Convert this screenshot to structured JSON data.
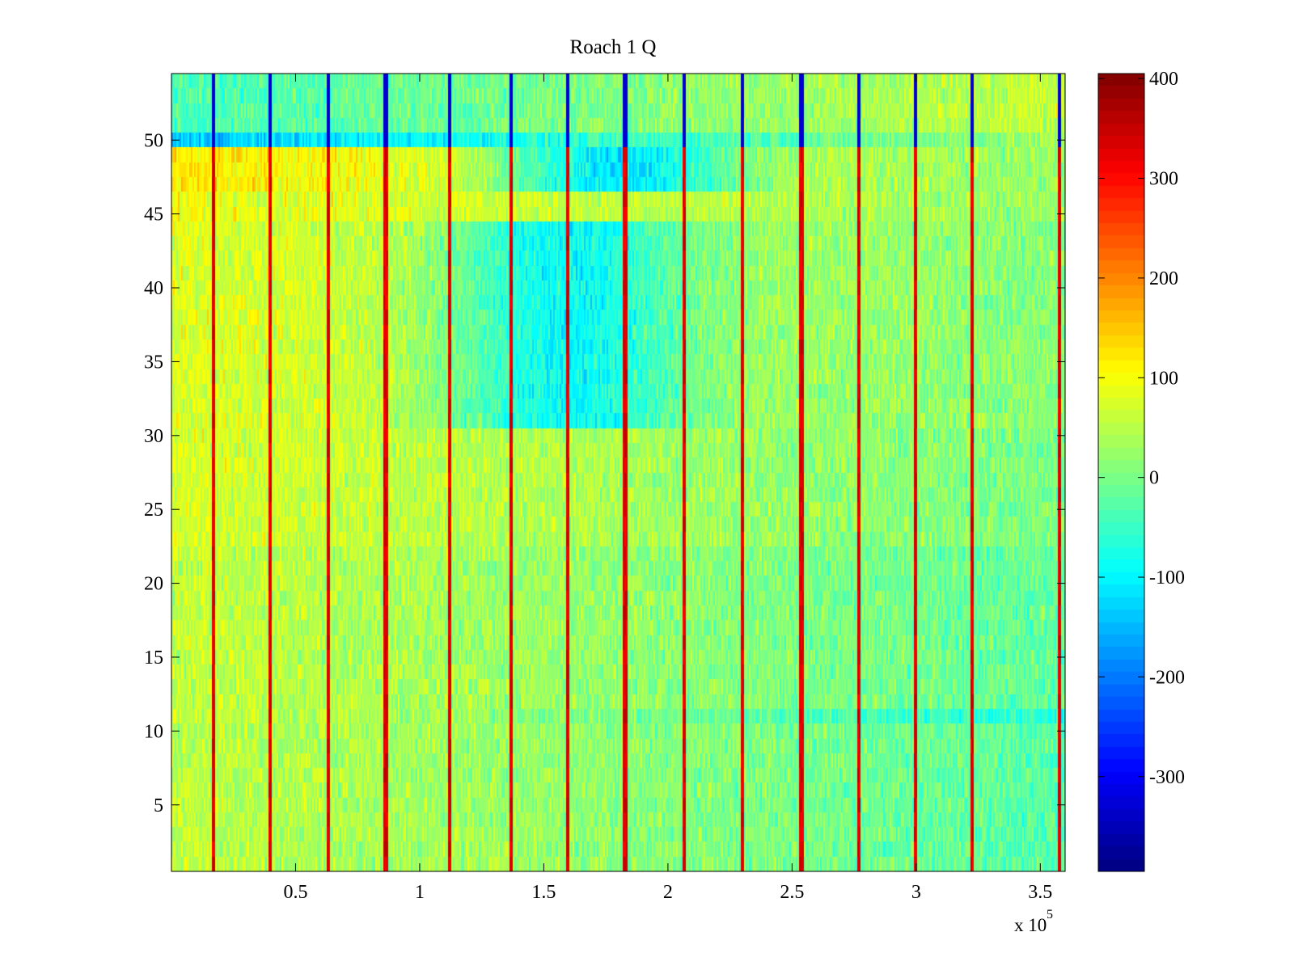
{
  "chart_data": {
    "type": "heatmap",
    "title": "Roach 1 Q",
    "xlabel": "",
    "ylabel": "",
    "x_exponent_label": "x 10",
    "x_exponent_power": "5",
    "xlim": [
      1,
      360000
    ],
    "ylim": [
      0.5,
      54.5
    ],
    "x_ticks": [
      0.5,
      1,
      1.5,
      2,
      2.5,
      3,
      3.5
    ],
    "x_tick_labels": [
      "0.5",
      "1",
      "1.5",
      "2",
      "2.5",
      "3",
      "3.5"
    ],
    "y_ticks": [
      5,
      10,
      15,
      20,
      25,
      30,
      35,
      40,
      45,
      50
    ],
    "y_tick_labels": [
      "5",
      "10",
      "15",
      "20",
      "25",
      "30",
      "35",
      "40",
      "45",
      "50"
    ],
    "rows": 54,
    "colorbar": {
      "colormap": "jet",
      "clim": [
        -395,
        405
      ],
      "ticks": [
        -300,
        -200,
        -100,
        0,
        100,
        200,
        300,
        400
      ],
      "tick_labels": [
        "-300",
        "-200",
        "-100",
        "0",
        "100",
        "200",
        "300",
        "400"
      ]
    },
    "spike_columns_x": [
      16500,
      39500,
      63000,
      86000,
      112000,
      136500,
      159500,
      182500,
      206000,
      229500,
      253500,
      276500,
      299500,
      322000,
      357500
    ],
    "row_band_means": [
      {
        "rows": [
          1,
          10
        ],
        "start": 55,
        "end": -25
      },
      {
        "rows": [
          11,
          11
        ],
        "start": 70,
        "end": -70
      },
      {
        "rows": [
          12,
          22
        ],
        "start": 60,
        "end": -20
      },
      {
        "rows": [
          23,
          30
        ],
        "start": 75,
        "end": 0
      },
      {
        "rows": [
          31,
          44
        ],
        "start": 80,
        "end": 10,
        "dip_center_x": 160000,
        "dip_value": -90
      },
      {
        "rows": [
          45,
          46
        ],
        "start": 95,
        "end": 20
      },
      {
        "rows": [
          47,
          49
        ],
        "start": 120,
        "end": 20,
        "dip_center_x": 180000,
        "dip_value": -110
      },
      {
        "rows": [
          50,
          50
        ],
        "start": -140,
        "end": 30
      },
      {
        "rows": [
          51,
          54
        ],
        "start": -40,
        "end": 60
      }
    ]
  }
}
